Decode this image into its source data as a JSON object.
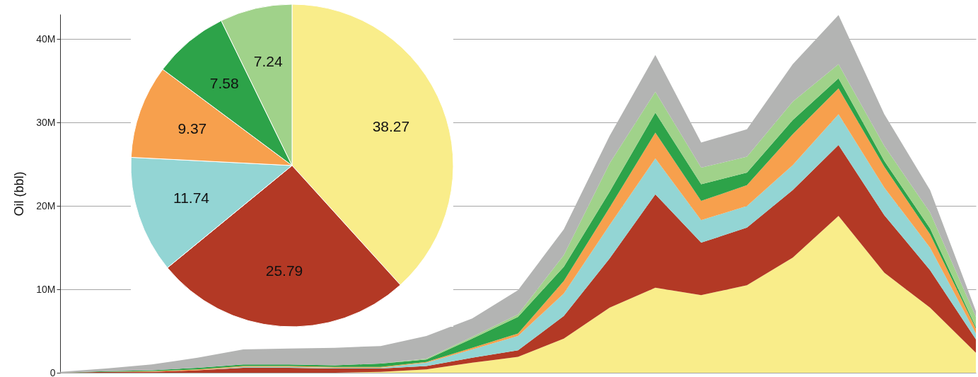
{
  "chart_data": [
    {
      "type": "area",
      "ylabel": "Oil (bbl)",
      "stacked": true,
      "grid": "y",
      "legend": false,
      "tick_labels": "y",
      "categories": [
        null,
        null,
        null,
        null,
        null,
        null,
        null,
        null,
        null,
        null,
        null,
        null,
        null,
        null,
        null,
        null,
        null,
        null,
        null,
        null,
        null
      ],
      "ylim": [
        0,
        43
      ],
      "yticks": [
        {
          "value": 0,
          "label": "0"
        },
        {
          "value": 10,
          "label": "10M"
        },
        {
          "value": 20,
          "label": "20M"
        },
        {
          "value": 30,
          "label": "30M"
        },
        {
          "value": 40,
          "label": "40M"
        }
      ],
      "series": [
        {
          "color": "#f9ed8a",
          "values": [
            0,
            0,
            0,
            0,
            0,
            0,
            0,
            0.1,
            0.4,
            1.2,
            1.9,
            4.1,
            7.8,
            10.2,
            9.3,
            10.5,
            13.8,
            18.8,
            12.0,
            7.8,
            2.4
          ]
        },
        {
          "color": "#b33925",
          "values": [
            0,
            0.1,
            0.1,
            0.3,
            0.6,
            0.6,
            0.5,
            0.4,
            0.4,
            0.6,
            0.8,
            2.7,
            5.9,
            11.2,
            6.3,
            6.9,
            8.1,
            8.5,
            6.9,
            4.5,
            1.6
          ]
        },
        {
          "color": "#93d5d4",
          "values": [
            0,
            0,
            0,
            0,
            0.1,
            0.1,
            0.1,
            0.1,
            0.4,
            1.0,
            1.7,
            2.7,
            4.0,
            4.3,
            2.7,
            2.6,
            3.0,
            3.7,
            3.3,
            2.7,
            0.7
          ]
        },
        {
          "color": "#f7a04d",
          "values": [
            0,
            0,
            0.1,
            0.1,
            0.1,
            0.1,
            0.1,
            0.1,
            0.1,
            0.2,
            0.3,
            1.5,
            2.1,
            3.1,
            2.3,
            2.5,
            3.7,
            3.1,
            2.5,
            1.6,
            0.6
          ]
        },
        {
          "color": "#2da349",
          "values": [
            0,
            0.1,
            0.1,
            0.2,
            0.2,
            0.2,
            0.2,
            0.4,
            0.3,
            1.1,
            2.0,
            1.7,
            1.9,
            2.4,
            2.0,
            1.5,
            1.7,
            1.2,
            0.7,
            0.7,
            0.2
          ]
        },
        {
          "color": "#a0d28a",
          "values": [
            0,
            0,
            0,
            0,
            0,
            0,
            0,
            0,
            0.1,
            0.2,
            0.3,
            1.4,
            3.4,
            2.5,
            2.0,
            1.9,
            2.2,
            1.7,
            1.8,
            1.9,
            1.2
          ]
        },
        {
          "color": "#b3b4b3",
          "values": [
            0.1,
            0.3,
            0.7,
            1.2,
            1.8,
            1.9,
            2.1,
            2.1,
            2.7,
            2.2,
            2.9,
            3.1,
            3.3,
            4.4,
            3.0,
            3.3,
            4.5,
            5.9,
            3.8,
            2.7,
            0.7
          ]
        }
      ]
    },
    {
      "type": "pie",
      "data_labels": true,
      "legend": false,
      "categories": [
        null,
        null,
        null,
        null,
        null,
        null
      ],
      "values": [
        38.27,
        25.79,
        11.74,
        9.37,
        7.58,
        7.24
      ],
      "colors": [
        "#f9ed8a",
        "#b33925",
        "#93d5d4",
        "#f7a04d",
        "#2da349",
        "#a0d28a"
      ]
    }
  ]
}
